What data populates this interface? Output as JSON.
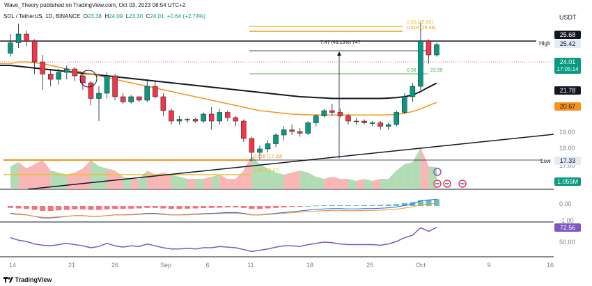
{
  "header": {
    "published": "Wave_Theory published on TradingView.com, Oct 03, 2023 08:54 UTC+2",
    "symbol": "SOL / TetherUS, 1D, BINANCE",
    "ohlc_o": "O",
    "open": "23.38",
    "ohlc_h": "H",
    "high": "24.09",
    "ohlc_l": "L",
    "low": "23.30",
    "ohlc_c": "C",
    "close": "24.01",
    "change": "+0.64 (+2.74%)"
  },
  "price_axis": {
    "currency": "USDT",
    "ticks": [
      "19.00",
      "18.00",
      "17.00"
    ],
    "tags": {
      "top_line": "25.68",
      "high": "25.42",
      "current_price": "24.01",
      "countdown": "17:05:14",
      "ema_black": "21.78",
      "ema_orange": "20.67",
      "low": "17.33",
      "volume": "1.055M"
    },
    "high_label": "High",
    "low_label": "Low"
  },
  "macd_axis": {
    "ticks": [
      "0.00",
      "-1.00"
    ]
  },
  "rsi_axis": {
    "value": "72.56",
    "ticks": [
      "50.00"
    ]
  },
  "time_axis": [
    "14",
    "21",
    "26",
    "Sep",
    "6",
    "11",
    "18",
    "25",
    "Oct",
    "9",
    "16"
  ],
  "fib_labels": {
    "f065": "0.65 (25.86)",
    "f0618": "0.618 (26.48)",
    "f038": "0.38",
    "f038val": "23.99",
    "f0618b": "0.618 (17.28)",
    "f065b": "0.65 (16.97)"
  },
  "measure_label": "7.47 (43.10%) 747",
  "footer": {
    "brand": "TradingView"
  },
  "colors": {
    "up": "#089981",
    "down": "#f23645",
    "ema_orange": "#f7931a",
    "ema_black": "#131722",
    "fib_yellow": "#e6c229",
    "fib_orange": "#f7931a",
    "fib_green": "#4caf50",
    "rsi": "#7e57c2",
    "volume_up": "#a5d6a7",
    "volume_down": "#f7a9a9"
  },
  "chart_data": {
    "type": "candlestick",
    "candles": [
      [
        23.5,
        24.6,
        23.3,
        24.1
      ],
      [
        24.1,
        25.2,
        23.8,
        24.6
      ],
      [
        24.6,
        24.8,
        23.9,
        24.2
      ],
      [
        24.2,
        24.3,
        22.3,
        23.0
      ],
      [
        23.0,
        23.4,
        21.4,
        22.3
      ],
      [
        22.3,
        22.6,
        21.6,
        22.0
      ],
      [
        22.0,
        22.6,
        21.7,
        22.4
      ],
      [
        22.4,
        22.8,
        22.0,
        22.6
      ],
      [
        22.6,
        22.7,
        21.9,
        22.2
      ],
      [
        22.2,
        22.4,
        21.4,
        21.8
      ],
      [
        21.8,
        21.9,
        20.5,
        20.9
      ],
      [
        20.9,
        21.6,
        19.6,
        21.2
      ],
      [
        21.2,
        22.4,
        20.9,
        22.2
      ],
      [
        22.2,
        22.3,
        20.8,
        21.0
      ],
      [
        21.0,
        21.2,
        20.6,
        20.7
      ],
      [
        20.7,
        21.1,
        20.6,
        21.0
      ],
      [
        21.0,
        21.0,
        20.7,
        20.8
      ],
      [
        20.8,
        22.0,
        20.7,
        21.6
      ],
      [
        21.6,
        21.9,
        20.9,
        21.0
      ],
      [
        21.0,
        21.2,
        19.9,
        20.2
      ],
      [
        20.2,
        20.3,
        19.4,
        19.6
      ],
      [
        19.6,
        19.9,
        19.4,
        19.7
      ],
      [
        19.7,
        19.8,
        19.5,
        19.7
      ],
      [
        19.7,
        19.8,
        19.5,
        19.6
      ],
      [
        19.6,
        20.1,
        19.5,
        20.0
      ],
      [
        20.0,
        20.4,
        19.1,
        19.6
      ],
      [
        19.6,
        20.3,
        19.4,
        20.1
      ],
      [
        20.1,
        20.2,
        19.6,
        19.8
      ],
      [
        19.8,
        19.9,
        19.3,
        19.6
      ],
      [
        19.6,
        19.7,
        18.4,
        18.6
      ],
      [
        18.6,
        18.7,
        17.3,
        17.8
      ],
      [
        17.8,
        18.2,
        17.4,
        18.0
      ],
      [
        18.0,
        18.5,
        17.8,
        18.3
      ],
      [
        18.3,
        18.9,
        18.1,
        18.8
      ],
      [
        18.8,
        19.3,
        18.5,
        19.1
      ],
      [
        19.1,
        19.4,
        18.8,
        19.0
      ],
      [
        19.0,
        19.2,
        18.7,
        18.9
      ],
      [
        18.9,
        19.6,
        18.8,
        19.5
      ],
      [
        19.5,
        20.0,
        19.3,
        19.9
      ],
      [
        19.9,
        20.3,
        19.8,
        20.2
      ],
      [
        20.2,
        20.6,
        19.9,
        20.1
      ],
      [
        20.1,
        20.3,
        19.8,
        19.9
      ],
      [
        19.9,
        20.0,
        19.4,
        19.6
      ],
      [
        19.6,
        19.8,
        19.4,
        19.6
      ],
      [
        19.6,
        19.7,
        19.4,
        19.5
      ],
      [
        19.5,
        19.6,
        19.3,
        19.5
      ],
      [
        19.5,
        19.6,
        19.1,
        19.3
      ],
      [
        19.3,
        19.5,
        19.1,
        19.4
      ],
      [
        19.4,
        20.2,
        19.3,
        20.1
      ],
      [
        20.1,
        21.2,
        20.0,
        21.0
      ],
      [
        21.0,
        21.8,
        20.7,
        21.6
      ],
      [
        21.6,
        25.3,
        21.4,
        24.2
      ],
      [
        24.2,
        24.3,
        22.9,
        23.4
      ],
      [
        23.4,
        24.1,
        23.3,
        24.0
      ]
    ],
    "ema_black": [
      22.8,
      22.75,
      22.7,
      22.65,
      22.6,
      22.55,
      22.5,
      22.45,
      22.4,
      22.35,
      22.3,
      22.25,
      22.2,
      22.15,
      22.1,
      22.05,
      22.0,
      21.95,
      21.9,
      21.85,
      21.8,
      21.75,
      21.7,
      21.65,
      21.6,
      21.55,
      21.5,
      21.45,
      21.4,
      21.35,
      21.3,
      21.25,
      21.2,
      21.15,
      21.1,
      21.05,
      21.0,
      20.98,
      20.95,
      20.93,
      20.9,
      20.9,
      20.9,
      20.9,
      20.9,
      20.9,
      20.9,
      20.92,
      20.95,
      21.0,
      21.1,
      21.3,
      21.55,
      21.78
    ],
    "ema_orange": [
      22.9,
      23.0,
      23.0,
      22.95,
      22.9,
      22.8,
      22.7,
      22.6,
      22.5,
      22.4,
      22.3,
      22.2,
      22.1,
      22.0,
      21.9,
      21.8,
      21.7,
      21.6,
      21.5,
      21.4,
      21.3,
      21.2,
      21.1,
      21.0,
      20.9,
      20.8,
      20.7,
      20.6,
      20.5,
      20.4,
      20.3,
      20.2,
      20.15,
      20.1,
      20.05,
      20.0,
      19.98,
      19.96,
      19.95,
      19.95,
      19.95,
      19.95,
      19.95,
      19.95,
      19.95,
      19.95,
      19.95,
      19.96,
      19.98,
      20.05,
      20.15,
      20.3,
      20.5,
      20.67
    ],
    "volume": [
      1.1,
      1.3,
      1.0,
      1.2,
      1.4,
      0.9,
      0.8,
      0.7,
      0.8,
      1.0,
      1.4,
      1.1,
      1.0,
      0.9,
      0.6,
      0.5,
      0.5,
      0.9,
      0.7,
      0.8,
      0.7,
      0.6,
      0.5,
      0.5,
      0.5,
      0.6,
      0.7,
      0.5,
      0.5,
      0.9,
      1.6,
      1.2,
      1.0,
      0.8,
      0.7,
      0.8,
      0.9,
      0.8,
      0.6,
      0.5,
      0.6,
      0.5,
      0.5,
      0.4,
      0.5,
      0.4,
      0.5,
      0.5,
      0.9,
      1.2,
      1.3,
      2.0,
      1.1,
      1.055
    ],
    "macd_hist": [
      -0.2,
      -0.25,
      -0.3,
      -0.4,
      -0.5,
      -0.5,
      -0.45,
      -0.4,
      -0.35,
      -0.35,
      -0.4,
      -0.4,
      -0.35,
      -0.3,
      -0.3,
      -0.28,
      -0.25,
      -0.2,
      -0.2,
      -0.25,
      -0.3,
      -0.3,
      -0.28,
      -0.25,
      -0.22,
      -0.2,
      -0.18,
      -0.15,
      -0.15,
      -0.2,
      -0.3,
      -0.3,
      -0.25,
      -0.2,
      -0.15,
      -0.1,
      -0.05,
      0.0,
      0.05,
      0.08,
      0.1,
      0.1,
      0.08,
      0.08,
      0.1,
      0.1,
      0.12,
      0.15,
      0.2,
      0.3,
      0.4,
      0.6,
      0.65,
      0.7
    ],
    "rsi": [
      56,
      52,
      50,
      46,
      44,
      43,
      45,
      47,
      45,
      43,
      40,
      42,
      47,
      43,
      41,
      43,
      42,
      46,
      43,
      40,
      38,
      38,
      39,
      38,
      40,
      40,
      42,
      41,
      40,
      37,
      34,
      36,
      38,
      41,
      43,
      43,
      42,
      45,
      47,
      49,
      48,
      46,
      45,
      45,
      45,
      45,
      44,
      46,
      50,
      56,
      60,
      72,
      66,
      72.56
    ]
  }
}
